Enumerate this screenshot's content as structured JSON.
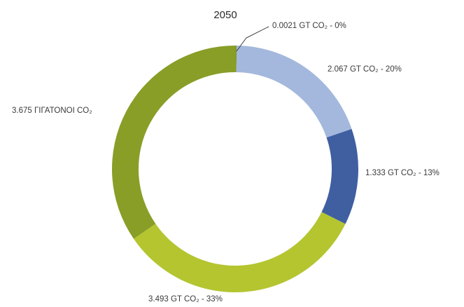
{
  "chart_data": {
    "type": "pie",
    "donut": true,
    "title": "2050",
    "slices": [
      {
        "value": 0.0021,
        "percent": 0,
        "label": "0.0021 GT CO₂ - 0%",
        "color": "#3f6e1c"
      },
      {
        "value": 2.067,
        "percent": 20,
        "label": "2.067 GT CO₂ - 20%",
        "color": "#a3b8dc"
      },
      {
        "value": 1.333,
        "percent": 13,
        "label": "1.333 GT CO₂ - 13%",
        "color": "#3f5fa1"
      },
      {
        "value": 3.493,
        "percent": 33,
        "label": "3.493 GT CO₂ - 33%",
        "color": "#b4c530"
      },
      {
        "value": 3.675,
        "percent": 35,
        "label": "3.675 ΓΙΓΑΤΟΝΟΙ CO₂",
        "color": "#889e27"
      }
    ],
    "legend": "none"
  }
}
